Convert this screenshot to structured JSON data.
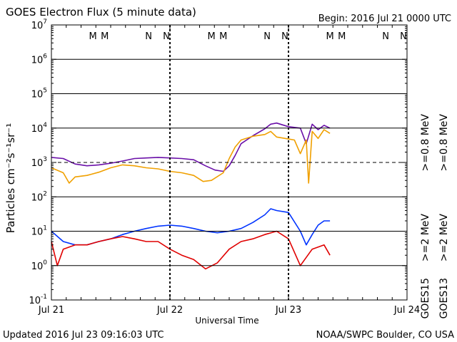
{
  "page": {
    "title": "GOES Electron Flux (5 minute data)",
    "begin": "Begin: 2016 Jul 21 0000 UTC",
    "updated": "Updated 2016 Jul 23 09:16:03 UTC",
    "credit": "NOAA/SWPC Boulder, CO USA"
  },
  "chart_data": {
    "type": "line",
    "title": "GOES Electron Flux (5 minute data)",
    "xlabel": "Universal Time",
    "ylabel": "Particles cm⁻²s⁻¹sr⁻¹",
    "y_scale": "log",
    "ylim": [
      0.1,
      10000000
    ],
    "xlim": [
      0,
      3
    ],
    "x_unit": "days since 2016 Jul 21 0000 UTC",
    "grid": true,
    "x_ticks": [
      {
        "x": 0,
        "label": "Jul 21"
      },
      {
        "x": 1,
        "label": "Jul 22"
      },
      {
        "x": 2,
        "label": "Jul 23"
      },
      {
        "x": 3,
        "label": "Jul 24"
      }
    ],
    "y_ticks": [
      {
        "v": 0.1,
        "base": "10",
        "exp": "-1"
      },
      {
        "v": 1,
        "base": "10",
        "exp": "0"
      },
      {
        "v": 10,
        "base": "10",
        "exp": "1"
      },
      {
        "v": 100,
        "base": "10",
        "exp": "2"
      },
      {
        "v": 1000,
        "base": "10",
        "exp": "3"
      },
      {
        "v": 10000,
        "base": "10",
        "exp": "4"
      },
      {
        "v": 100000,
        "base": "10",
        "exp": "5"
      },
      {
        "v": 1000000,
        "base": "10",
        "exp": "6"
      },
      {
        "v": 10000000,
        "base": "10",
        "exp": "7"
      }
    ],
    "threshold": {
      "value": 1000,
      "style": "dashed"
    },
    "local_time_markers": [
      {
        "x": 0.35,
        "label": "M",
        "color": "#e00000"
      },
      {
        "x": 0.45,
        "label": "M",
        "color": "#0000cc"
      },
      {
        "x": 0.82,
        "label": "N",
        "color": "#e00000"
      },
      {
        "x": 0.97,
        "label": "N",
        "color": "#0000cc"
      },
      {
        "x": 1.35,
        "label": "M",
        "color": "#e00000"
      },
      {
        "x": 1.45,
        "label": "M",
        "color": "#0000cc"
      },
      {
        "x": 1.82,
        "label": "N",
        "color": "#e00000"
      },
      {
        "x": 1.97,
        "label": "N",
        "color": "#0000cc"
      },
      {
        "x": 2.35,
        "label": "M",
        "color": "#e00000"
      },
      {
        "x": 2.45,
        "label": "M",
        "color": "#0000cc"
      },
      {
        "x": 2.82,
        "label": "N",
        "color": "#e00000"
      },
      {
        "x": 2.97,
        "label": "N",
        "color": "#0000cc"
      }
    ],
    "right_legend": [
      {
        "label": ">=0.8 MeV",
        "color": "#f0a000",
        "col": 2
      },
      {
        "label": ">=0.8 MeV",
        "color": "#6a0fa8",
        "col": 1
      },
      {
        "label": ">=2 MeV",
        "color": "#e00000",
        "col": 2
      },
      {
        "label": ">=2 MeV",
        "color": "#0033ff",
        "col": 1
      },
      {
        "label": "GOES13",
        "color": "#000000",
        "col": 2
      },
      {
        "label": "GOES15",
        "color": "#000000",
        "col": 1
      }
    ],
    "series": [
      {
        "name": "GOES15 >=0.8 MeV",
        "color": "#6a0fa8",
        "x": [
          0,
          0.1,
          0.2,
          0.3,
          0.4,
          0.5,
          0.6,
          0.7,
          0.8,
          0.9,
          1.0,
          1.1,
          1.2,
          1.3,
          1.38,
          1.45,
          1.5,
          1.55,
          1.6,
          1.7,
          1.8,
          1.85,
          1.9,
          2.0,
          2.1,
          2.15,
          2.2,
          2.25,
          2.3,
          2.35
        ],
        "y": [
          1400,
          1300,
          900,
          800,
          850,
          950,
          1100,
          1300,
          1350,
          1400,
          1350,
          1300,
          1200,
          800,
          600,
          550,
          800,
          1600,
          3500,
          6000,
          9500,
          13000,
          14000,
          11000,
          10000,
          3500,
          13000,
          9000,
          12000,
          10000
        ]
      },
      {
        "name": "GOES13 >=0.8 MeV",
        "color": "#f0a000",
        "x": [
          0,
          0.1,
          0.15,
          0.2,
          0.3,
          0.4,
          0.5,
          0.6,
          0.7,
          0.8,
          0.9,
          1.0,
          1.1,
          1.2,
          1.28,
          1.35,
          1.45,
          1.5,
          1.55,
          1.6,
          1.7,
          1.8,
          1.85,
          1.9,
          2.0,
          2.05,
          2.1,
          2.15,
          2.17,
          2.2,
          2.25,
          2.3,
          2.35
        ],
        "y": [
          700,
          500,
          250,
          380,
          420,
          520,
          700,
          850,
          800,
          700,
          650,
          550,
          500,
          420,
          280,
          300,
          500,
          1300,
          2800,
          4500,
          5800,
          6500,
          8000,
          5500,
          4800,
          4500,
          1800,
          4500,
          250,
          8000,
          5000,
          9000,
          7000
        ]
      },
      {
        "name": "GOES15 >=2 MeV",
        "color": "#0033ff",
        "x": [
          0,
          0.1,
          0.2,
          0.3,
          0.4,
          0.5,
          0.6,
          0.7,
          0.8,
          0.9,
          1.0,
          1.1,
          1.2,
          1.3,
          1.4,
          1.5,
          1.6,
          1.7,
          1.8,
          1.85,
          1.9,
          2.0,
          2.1,
          2.15,
          2.2,
          2.25,
          2.3,
          2.35
        ],
        "y": [
          10,
          5,
          4,
          4,
          5,
          6,
          8,
          10,
          12,
          14,
          15,
          14,
          12,
          10,
          9,
          10,
          12,
          18,
          30,
          45,
          40,
          35,
          10,
          4,
          8,
          15,
          20,
          20
        ]
      },
      {
        "name": "GOES13 >=2 MeV",
        "color": "#e00000",
        "x": [
          0,
          0.05,
          0.1,
          0.2,
          0.3,
          0.4,
          0.5,
          0.6,
          0.7,
          0.8,
          0.9,
          1.0,
          1.1,
          1.2,
          1.3,
          1.4,
          1.5,
          1.6,
          1.7,
          1.8,
          1.9,
          2.0,
          2.1,
          2.2,
          2.3,
          2.35
        ],
        "y": [
          5,
          1,
          3,
          4,
          4,
          5,
          6,
          7,
          6,
          5,
          5,
          3,
          2,
          1.5,
          0.8,
          1.2,
          3,
          5,
          6,
          8,
          10,
          6,
          1,
          3,
          4,
          2
        ]
      }
    ]
  }
}
